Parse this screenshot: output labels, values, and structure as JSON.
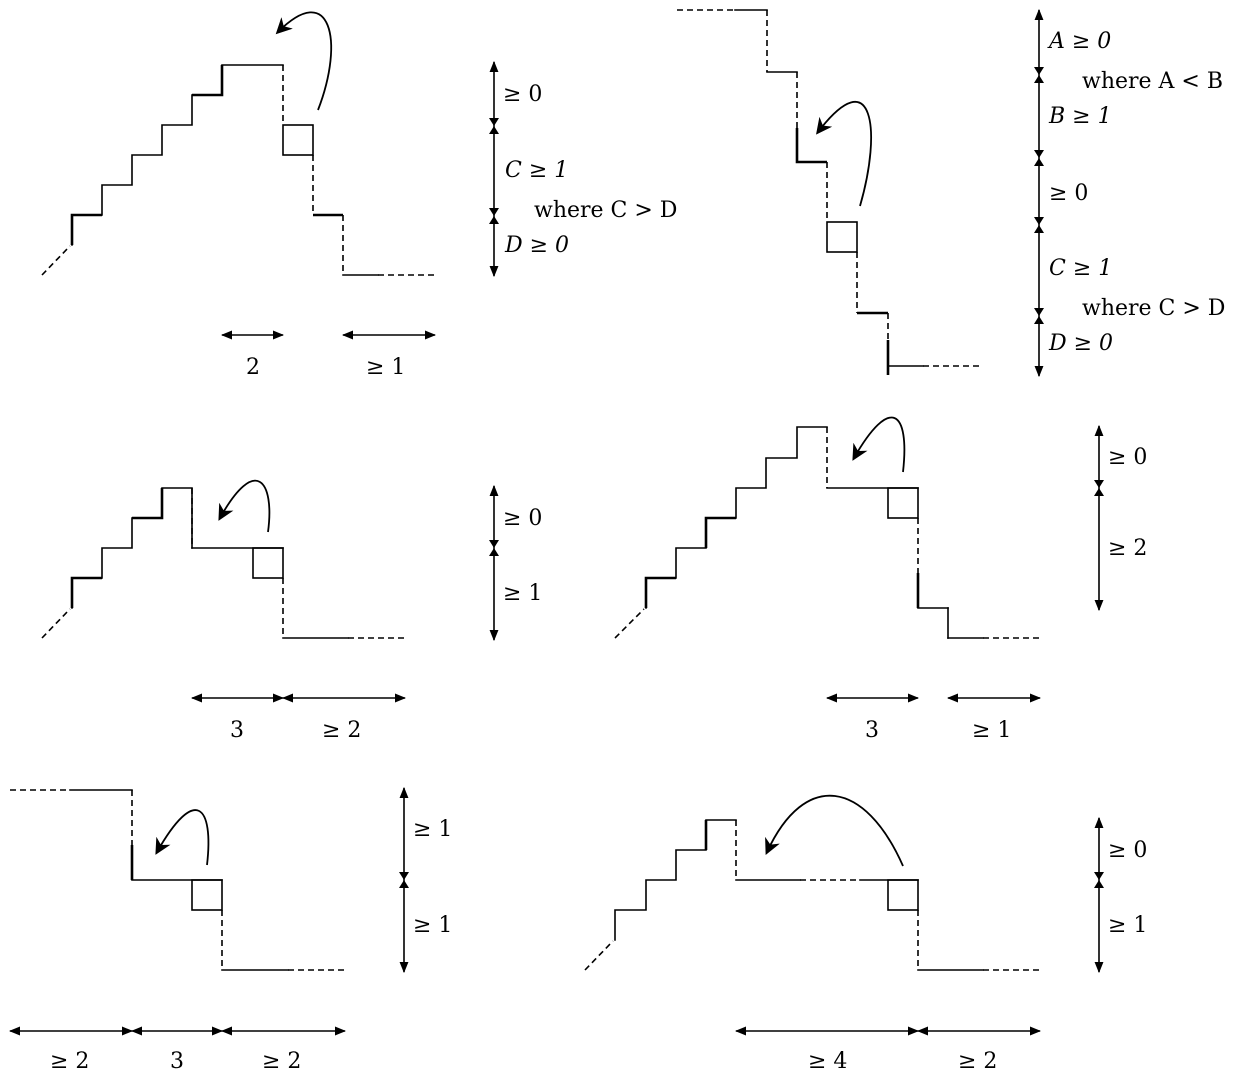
{
  "panels": [
    {
      "id": "top-left",
      "vertical_labels": [
        "≥ 0",
        "C ≥ 1",
        "where C > D",
        "D ≥ 0"
      ],
      "horizontal_labels": [
        "2",
        "≥ 1"
      ]
    },
    {
      "id": "top-right",
      "vertical_labels": [
        "A ≥ 0",
        "where A < B",
        "B ≥ 1",
        "≥ 0",
        "C ≥ 1",
        "where C > D",
        "D ≥ 0"
      ],
      "horizontal_labels": []
    },
    {
      "id": "middle-left",
      "vertical_labels": [
        "≥ 0",
        "≥ 1"
      ],
      "horizontal_labels": [
        "3",
        "≥ 2"
      ]
    },
    {
      "id": "middle-right",
      "vertical_labels": [
        "≥ 0",
        "≥ 2"
      ],
      "horizontal_labels": [
        "3",
        "≥ 1"
      ]
    },
    {
      "id": "bottom-left",
      "vertical_labels": [
        "≥ 1",
        "≥ 1"
      ],
      "horizontal_labels": [
        "≥ 2",
        "3",
        "≥ 2"
      ]
    },
    {
      "id": "bottom-right",
      "vertical_labels": [
        "≥ 0",
        "≥ 1"
      ],
      "horizontal_labels": [
        "≥ 4",
        "≥ 2"
      ]
    }
  ]
}
